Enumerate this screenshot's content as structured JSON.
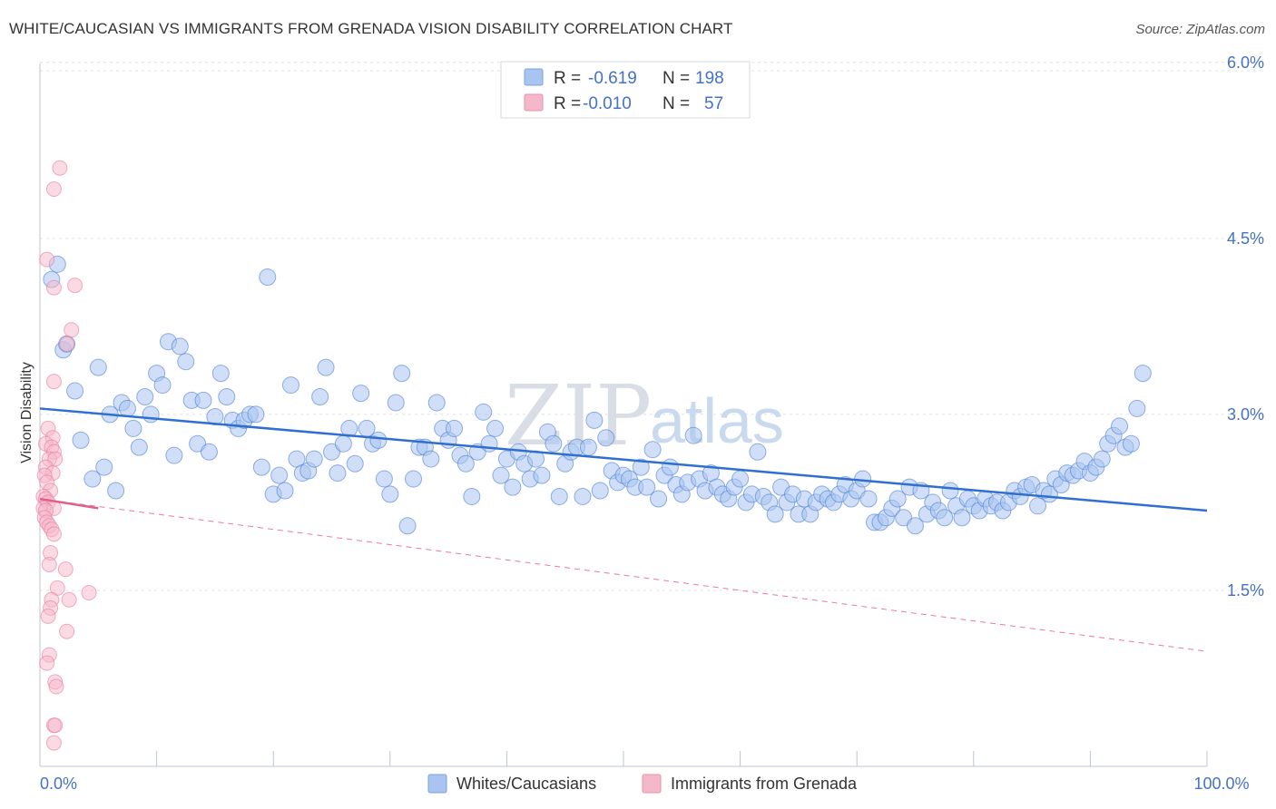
{
  "title": "WHITE/CAUCASIAN VS IMMIGRANTS FROM GRENADA VISION DISABILITY CORRELATION CHART",
  "source": "Source: ZipAtlas.com",
  "watermark": {
    "part1": "ZIP",
    "part2": "atlas"
  },
  "legend": {
    "rows": [
      {
        "r_label": "R =",
        "r_value": "-0.619",
        "n_label": "N =",
        "n_value": "198",
        "color": "#a9c4f0"
      },
      {
        "r_label": "R =",
        "r_value": "-0.010",
        "n_label": "N =",
        "n_value": "57",
        "color": "#f5b8ca"
      }
    ]
  },
  "bottom_legend": [
    {
      "label": "Whites/Caucasians",
      "color": "#a9c4f0"
    },
    {
      "label": "Immigrants from Grenada",
      "color": "#f5b8ca"
    }
  ],
  "chart_data": {
    "type": "scatter",
    "ylabel": "Vision Disability",
    "xlim": [
      0,
      100
    ],
    "ylim": [
      0,
      6.3
    ],
    "y_ticks": [
      {
        "value": 1.5,
        "label": "1.5%"
      },
      {
        "value": 3.0,
        "label": "3.0%"
      },
      {
        "value": 4.5,
        "label": "4.5%"
      },
      {
        "value": 6.0,
        "label": "6.0%"
      }
    ],
    "x_ticks": [
      {
        "value": 0,
        "label": "0.0%"
      },
      {
        "value": 100,
        "label": "100.0%"
      }
    ],
    "grid": true,
    "series": [
      {
        "name": "Whites/Caucasians",
        "color": "#4a7fd4",
        "fill": "#a9c4f0",
        "trend": {
          "x": [
            0,
            100
          ],
          "y": [
            3.05,
            2.18
          ],
          "style": "solid"
        },
        "points": [
          [
            1.0,
            4.15
          ],
          [
            1.5,
            4.28
          ],
          [
            2.0,
            3.55
          ],
          [
            2.3,
            3.6
          ],
          [
            3.0,
            3.2
          ],
          [
            3.5,
            2.78
          ],
          [
            4.5,
            2.45
          ],
          [
            5.0,
            3.4
          ],
          [
            5.5,
            2.55
          ],
          [
            6.0,
            3.0
          ],
          [
            6.5,
            2.35
          ],
          [
            7.0,
            3.1
          ],
          [
            7.5,
            3.05
          ],
          [
            8.0,
            2.88
          ],
          [
            8.5,
            2.72
          ],
          [
            9.0,
            3.15
          ],
          [
            9.5,
            3.0
          ],
          [
            10.0,
            3.35
          ],
          [
            10.5,
            3.25
          ],
          [
            11.0,
            3.62
          ],
          [
            11.5,
            2.65
          ],
          [
            12.0,
            3.58
          ],
          [
            12.5,
            3.45
          ],
          [
            13.0,
            3.12
          ],
          [
            13.5,
            2.75
          ],
          [
            14.0,
            3.12
          ],
          [
            14.5,
            2.68
          ],
          [
            15.0,
            2.98
          ],
          [
            15.5,
            3.35
          ],
          [
            16.0,
            3.15
          ],
          [
            16.5,
            2.95
          ],
          [
            17.0,
            2.88
          ],
          [
            17.5,
            2.95
          ],
          [
            18.0,
            3.0
          ],
          [
            18.5,
            3.0
          ],
          [
            19.0,
            2.55
          ],
          [
            19.5,
            4.17
          ],
          [
            20.0,
            2.32
          ],
          [
            20.5,
            2.48
          ],
          [
            21.0,
            2.35
          ],
          [
            21.5,
            3.25
          ],
          [
            22.0,
            2.62
          ],
          [
            22.5,
            2.5
          ],
          [
            23.0,
            2.52
          ],
          [
            23.5,
            2.62
          ],
          [
            24.0,
            3.15
          ],
          [
            24.5,
            3.4
          ],
          [
            25.0,
            2.68
          ],
          [
            25.5,
            2.5
          ],
          [
            26.0,
            2.75
          ],
          [
            26.5,
            2.88
          ],
          [
            27.0,
            2.58
          ],
          [
            27.5,
            3.18
          ],
          [
            28.0,
            2.88
          ],
          [
            28.5,
            2.75
          ],
          [
            29.0,
            2.78
          ],
          [
            29.5,
            2.45
          ],
          [
            30.0,
            2.32
          ],
          [
            30.5,
            3.1
          ],
          [
            31.0,
            3.35
          ],
          [
            31.5,
            2.05
          ],
          [
            32.0,
            2.45
          ],
          [
            32.5,
            2.72
          ],
          [
            33.0,
            2.72
          ],
          [
            33.5,
            2.62
          ],
          [
            34.0,
            3.1
          ],
          [
            34.5,
            2.88
          ],
          [
            35.0,
            2.78
          ],
          [
            35.5,
            2.88
          ],
          [
            36.0,
            2.65
          ],
          [
            36.5,
            2.58
          ],
          [
            37.0,
            2.3
          ],
          [
            37.5,
            2.68
          ],
          [
            38.0,
            3.02
          ],
          [
            38.5,
            2.75
          ],
          [
            39.0,
            2.88
          ],
          [
            39.5,
            2.48
          ],
          [
            40.0,
            2.62
          ],
          [
            40.5,
            2.38
          ],
          [
            41.0,
            2.68
          ],
          [
            41.5,
            2.58
          ],
          [
            42.0,
            2.45
          ],
          [
            42.5,
            2.62
          ],
          [
            43.0,
            2.48
          ],
          [
            43.5,
            2.85
          ],
          [
            44.0,
            2.75
          ],
          [
            44.5,
            2.3
          ],
          [
            45.0,
            2.58
          ],
          [
            45.5,
            2.68
          ],
          [
            46.0,
            2.72
          ],
          [
            46.5,
            2.3
          ],
          [
            47.0,
            2.72
          ],
          [
            47.5,
            2.95
          ],
          [
            48.0,
            2.35
          ],
          [
            48.5,
            2.8
          ],
          [
            49.0,
            2.52
          ],
          [
            49.5,
            2.42
          ],
          [
            50.0,
            2.48
          ],
          [
            50.5,
            2.45
          ],
          [
            51.0,
            2.38
          ],
          [
            51.5,
            2.55
          ],
          [
            52.0,
            2.38
          ],
          [
            52.5,
            2.7
          ],
          [
            53.0,
            2.28
          ],
          [
            53.5,
            2.48
          ],
          [
            54.0,
            2.55
          ],
          [
            54.5,
            2.4
          ],
          [
            55.0,
            2.32
          ],
          [
            55.5,
            2.42
          ],
          [
            56.0,
            2.82
          ],
          [
            56.5,
            2.45
          ],
          [
            57.0,
            2.35
          ],
          [
            57.5,
            2.5
          ],
          [
            58.0,
            2.38
          ],
          [
            58.5,
            2.32
          ],
          [
            59.0,
            2.28
          ],
          [
            59.5,
            2.38
          ],
          [
            60.0,
            2.45
          ],
          [
            60.5,
            2.25
          ],
          [
            61.0,
            2.32
          ],
          [
            61.5,
            2.68
          ],
          [
            62.0,
            2.3
          ],
          [
            62.5,
            2.25
          ],
          [
            63.0,
            2.15
          ],
          [
            63.5,
            2.38
          ],
          [
            64.0,
            2.25
          ],
          [
            64.5,
            2.32
          ],
          [
            65.0,
            2.15
          ],
          [
            65.5,
            2.28
          ],
          [
            66.0,
            2.15
          ],
          [
            66.5,
            2.25
          ],
          [
            67.0,
            2.32
          ],
          [
            67.5,
            2.28
          ],
          [
            68.0,
            2.25
          ],
          [
            68.5,
            2.32
          ],
          [
            69.0,
            2.4
          ],
          [
            69.5,
            2.28
          ],
          [
            70.0,
            2.35
          ],
          [
            70.5,
            2.45
          ],
          [
            71.0,
            2.28
          ],
          [
            71.5,
            2.08
          ],
          [
            72.0,
            2.08
          ],
          [
            72.5,
            2.12
          ],
          [
            73.0,
            2.2
          ],
          [
            73.5,
            2.28
          ],
          [
            74.0,
            2.12
          ],
          [
            74.5,
            2.38
          ],
          [
            75.0,
            2.05
          ],
          [
            75.5,
            2.35
          ],
          [
            76.0,
            2.15
          ],
          [
            76.5,
            2.25
          ],
          [
            77.0,
            2.18
          ],
          [
            77.5,
            2.12
          ],
          [
            78.0,
            2.35
          ],
          [
            78.5,
            2.22
          ],
          [
            79.0,
            2.12
          ],
          [
            79.5,
            2.28
          ],
          [
            80.0,
            2.22
          ],
          [
            80.5,
            2.18
          ],
          [
            81.0,
            2.28
          ],
          [
            81.5,
            2.22
          ],
          [
            82.0,
            2.25
          ],
          [
            82.5,
            2.18
          ],
          [
            83.0,
            2.25
          ],
          [
            83.5,
            2.35
          ],
          [
            84.0,
            2.3
          ],
          [
            84.5,
            2.38
          ],
          [
            85.0,
            2.4
          ],
          [
            85.5,
            2.22
          ],
          [
            86.0,
            2.35
          ],
          [
            86.5,
            2.32
          ],
          [
            87.0,
            2.45
          ],
          [
            87.5,
            2.4
          ],
          [
            88.0,
            2.5
          ],
          [
            88.5,
            2.48
          ],
          [
            89.0,
            2.52
          ],
          [
            89.5,
            2.6
          ],
          [
            90.0,
            2.5
          ],
          [
            90.5,
            2.55
          ],
          [
            91.0,
            2.62
          ],
          [
            91.5,
            2.75
          ],
          [
            92.0,
            2.82
          ],
          [
            92.5,
            2.9
          ],
          [
            93.0,
            2.72
          ],
          [
            93.5,
            2.75
          ],
          [
            94.0,
            3.05
          ],
          [
            94.5,
            3.35
          ]
        ]
      },
      {
        "name": "Immigrants from Grenada",
        "color": "#e87a9e",
        "fill": "#f5b8ca",
        "trend_solid": {
          "x": [
            0,
            5
          ],
          "y": [
            2.28,
            2.2
          ]
        },
        "trend": {
          "x": [
            0,
            100
          ],
          "y": [
            2.28,
            0.98
          ],
          "style": "dashed"
        },
        "points": [
          [
            1.7,
            5.1
          ],
          [
            1.2,
            4.92
          ],
          [
            0.6,
            4.32
          ],
          [
            1.2,
            4.08
          ],
          [
            3.0,
            4.1
          ],
          [
            2.7,
            3.72
          ],
          [
            2.3,
            3.6
          ],
          [
            1.2,
            3.28
          ],
          [
            0.7,
            2.88
          ],
          [
            1.1,
            2.8
          ],
          [
            0.5,
            2.75
          ],
          [
            1.0,
            2.72
          ],
          [
            1.2,
            2.68
          ],
          [
            0.8,
            2.62
          ],
          [
            1.3,
            2.62
          ],
          [
            0.5,
            2.55
          ],
          [
            1.1,
            2.5
          ],
          [
            0.4,
            2.48
          ],
          [
            0.6,
            2.42
          ],
          [
            0.9,
            2.35
          ],
          [
            0.3,
            2.3
          ],
          [
            0.5,
            2.28
          ],
          [
            0.7,
            2.25
          ],
          [
            0.3,
            2.2
          ],
          [
            1.2,
            2.2
          ],
          [
            0.5,
            2.18
          ],
          [
            0.4,
            2.12
          ],
          [
            0.6,
            2.08
          ],
          [
            0.8,
            2.05
          ],
          [
            1.0,
            2.02
          ],
          [
            1.2,
            1.98
          ],
          [
            0.9,
            1.82
          ],
          [
            0.8,
            1.72
          ],
          [
            2.2,
            1.68
          ],
          [
            1.5,
            1.52
          ],
          [
            4.2,
            1.48
          ],
          [
            1.0,
            1.42
          ],
          [
            2.5,
            1.42
          ],
          [
            0.9,
            1.35
          ],
          [
            0.7,
            1.28
          ],
          [
            2.3,
            1.15
          ],
          [
            0.8,
            0.95
          ],
          [
            0.6,
            0.88
          ],
          [
            1.3,
            0.72
          ],
          [
            1.4,
            0.68
          ],
          [
            1.2,
            0.35
          ],
          [
            1.3,
            0.35
          ],
          [
            1.2,
            0.2
          ]
        ]
      }
    ]
  }
}
